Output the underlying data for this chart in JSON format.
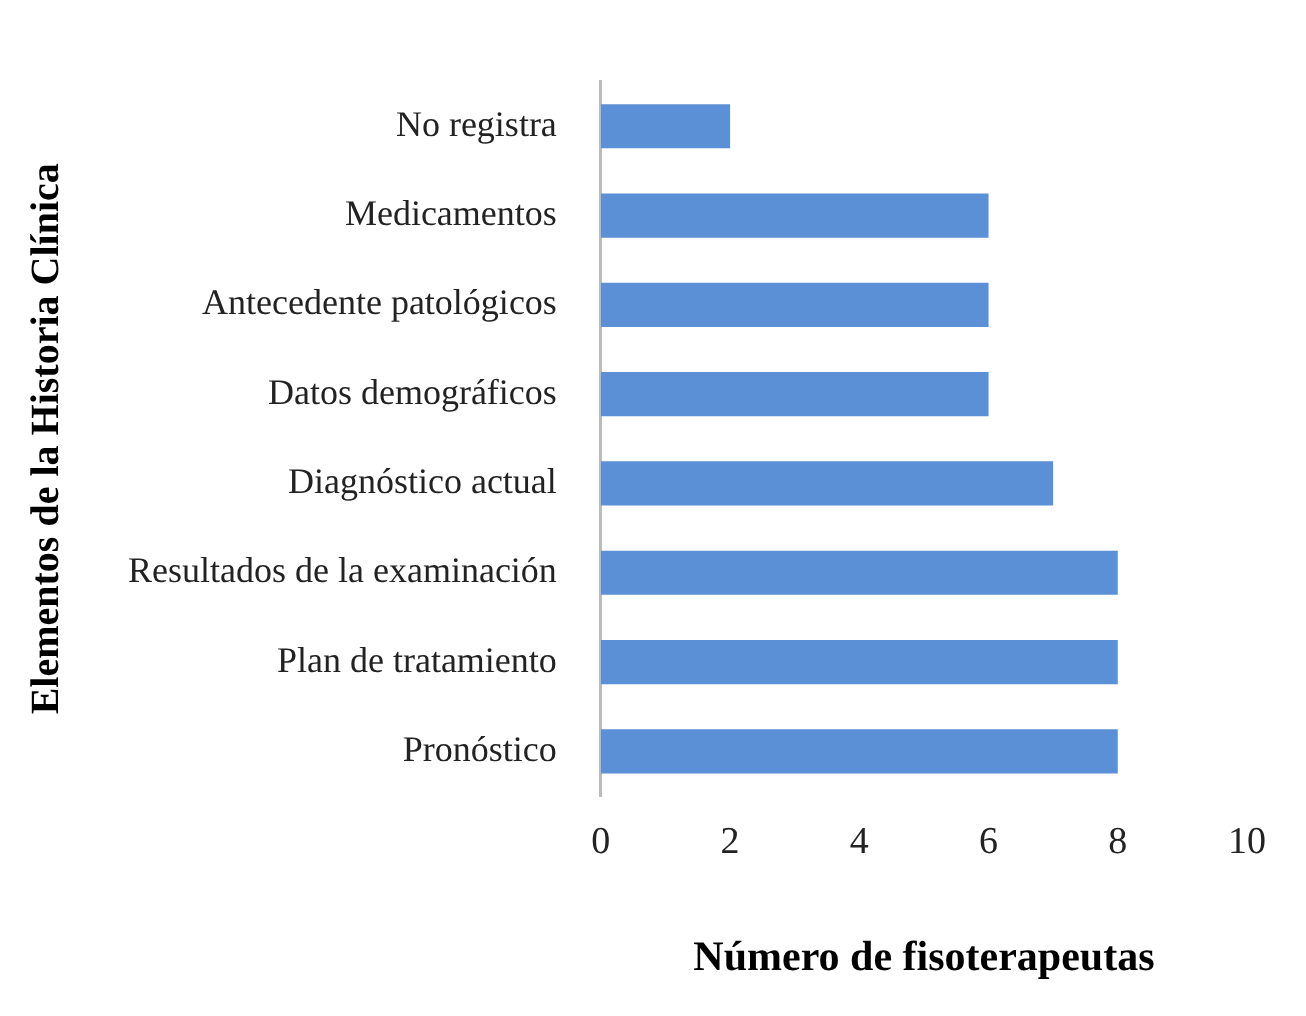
{
  "chart_data": {
    "type": "bar",
    "orientation": "horizontal",
    "xlabel": "Número de fisoterapeutas",
    "ylabel": "Elementos de la Historia Clínica",
    "categories": [
      "No registra",
      "Medicamentos",
      "Antecedente patológicos",
      "Datos demográficos",
      "Diagnóstico actual",
      "Resultados de la examinación",
      "Plan de tratamiento",
      "Pronóstico"
    ],
    "values": [
      2,
      6,
      6,
      6,
      7,
      8,
      8,
      8
    ],
    "color": "#5b8fd6",
    "xlim": [
      0,
      10
    ],
    "xticks": [
      0,
      2,
      4,
      6,
      8,
      10
    ],
    "grid": false,
    "legend": false
  }
}
